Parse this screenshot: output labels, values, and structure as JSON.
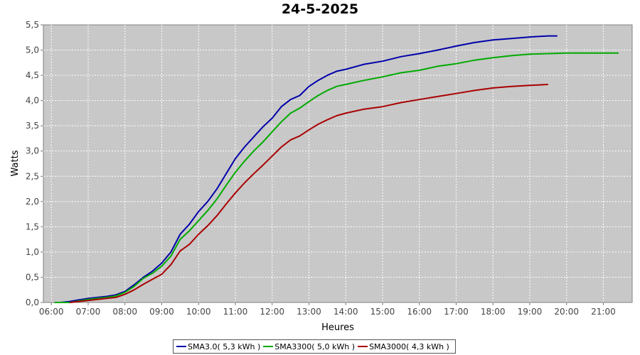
{
  "chart_data": {
    "type": "line",
    "title": "24-5-2025",
    "xlabel": "Heures",
    "ylabel": "Watts",
    "xlim": [
      "05:47",
      "21:47"
    ],
    "ylim": [
      0,
      5.5
    ],
    "x_ticks": [
      "06:00",
      "07:00",
      "08:00",
      "09:00",
      "10:00",
      "11:00",
      "12:00",
      "13:00",
      "14:00",
      "15:00",
      "16:00",
      "17:00",
      "18:00",
      "19:00",
      "20:00",
      "21:00"
    ],
    "y_ticks": [
      "0,0",
      "0,5",
      "1,0",
      "1,5",
      "2,0",
      "2,5",
      "3,0",
      "3,5",
      "4,0",
      "4,5",
      "5,0",
      "5,5"
    ],
    "grid": true,
    "legend_position": "bottom",
    "series": [
      {
        "name": "SMA3.0( 5,3 kWh )",
        "color": "#0000aa",
        "points": [
          [
            "06:15",
            0.0
          ],
          [
            "06:30",
            0.02
          ],
          [
            "06:45",
            0.05
          ],
          [
            "07:00",
            0.08
          ],
          [
            "07:15",
            0.1
          ],
          [
            "07:30",
            0.12
          ],
          [
            "07:45",
            0.15
          ],
          [
            "08:00",
            0.22
          ],
          [
            "08:15",
            0.35
          ],
          [
            "08:30",
            0.5
          ],
          [
            "08:45",
            0.62
          ],
          [
            "09:00",
            0.78
          ],
          [
            "09:15",
            1.0
          ],
          [
            "09:30",
            1.35
          ],
          [
            "09:45",
            1.55
          ],
          [
            "10:00",
            1.8
          ],
          [
            "10:15",
            2.0
          ],
          [
            "10:30",
            2.25
          ],
          [
            "10:45",
            2.55
          ],
          [
            "11:00",
            2.85
          ],
          [
            "11:15",
            3.08
          ],
          [
            "11:30",
            3.28
          ],
          [
            "11:45",
            3.48
          ],
          [
            "12:00",
            3.65
          ],
          [
            "12:15",
            3.88
          ],
          [
            "12:30",
            4.02
          ],
          [
            "12:45",
            4.1
          ],
          [
            "13:00",
            4.28
          ],
          [
            "13:15",
            4.4
          ],
          [
            "13:30",
            4.5
          ],
          [
            "13:45",
            4.58
          ],
          [
            "14:00",
            4.62
          ],
          [
            "14:30",
            4.72
          ],
          [
            "15:00",
            4.78
          ],
          [
            "15:30",
            4.87
          ],
          [
            "16:00",
            4.93
          ],
          [
            "16:30",
            5.0
          ],
          [
            "17:00",
            5.08
          ],
          [
            "17:30",
            5.15
          ],
          [
            "18:00",
            5.2
          ],
          [
            "18:30",
            5.23
          ],
          [
            "19:00",
            5.26
          ],
          [
            "19:30",
            5.28
          ],
          [
            "19:45",
            5.28
          ]
        ]
      },
      {
        "name": "SMA3300( 5,0 kWh )",
        "color": "#00aa00",
        "points": [
          [
            "06:05",
            0.0
          ],
          [
            "06:30",
            0.0
          ],
          [
            "06:45",
            0.03
          ],
          [
            "07:00",
            0.06
          ],
          [
            "07:15",
            0.08
          ],
          [
            "07:30",
            0.1
          ],
          [
            "07:45",
            0.13
          ],
          [
            "08:00",
            0.2
          ],
          [
            "08:15",
            0.32
          ],
          [
            "08:30",
            0.48
          ],
          [
            "08:45",
            0.58
          ],
          [
            "09:00",
            0.72
          ],
          [
            "09:15",
            0.92
          ],
          [
            "09:30",
            1.25
          ],
          [
            "09:45",
            1.42
          ],
          [
            "10:00",
            1.62
          ],
          [
            "10:15",
            1.82
          ],
          [
            "10:30",
            2.05
          ],
          [
            "10:45",
            2.32
          ],
          [
            "11:00",
            2.58
          ],
          [
            "11:15",
            2.8
          ],
          [
            "11:30",
            3.0
          ],
          [
            "11:45",
            3.18
          ],
          [
            "12:00",
            3.38
          ],
          [
            "12:15",
            3.58
          ],
          [
            "12:30",
            3.75
          ],
          [
            "12:45",
            3.85
          ],
          [
            "13:00",
            3.98
          ],
          [
            "13:15",
            4.1
          ],
          [
            "13:30",
            4.2
          ],
          [
            "13:45",
            4.28
          ],
          [
            "14:00",
            4.32
          ],
          [
            "14:30",
            4.4
          ],
          [
            "15:00",
            4.47
          ],
          [
            "15:30",
            4.55
          ],
          [
            "16:00",
            4.6
          ],
          [
            "16:30",
            4.68
          ],
          [
            "17:00",
            4.73
          ],
          [
            "17:30",
            4.8
          ],
          [
            "18:00",
            4.85
          ],
          [
            "18:30",
            4.89
          ],
          [
            "19:00",
            4.92
          ],
          [
            "19:30",
            4.93
          ],
          [
            "20:00",
            4.94
          ],
          [
            "21:00",
            4.94
          ],
          [
            "21:25",
            4.94
          ]
        ]
      },
      {
        "name": "SMA3000( 4,3 kWh )",
        "color": "#aa0000",
        "points": [
          [
            "06:30",
            0.0
          ],
          [
            "06:45",
            0.02
          ],
          [
            "07:00",
            0.04
          ],
          [
            "07:15",
            0.06
          ],
          [
            "07:30",
            0.08
          ],
          [
            "07:45",
            0.1
          ],
          [
            "08:00",
            0.16
          ],
          [
            "08:15",
            0.25
          ],
          [
            "08:30",
            0.36
          ],
          [
            "08:45",
            0.46
          ],
          [
            "09:00",
            0.56
          ],
          [
            "09:15",
            0.75
          ],
          [
            "09:30",
            1.02
          ],
          [
            "09:45",
            1.15
          ],
          [
            "10:00",
            1.35
          ],
          [
            "10:15",
            1.52
          ],
          [
            "10:30",
            1.72
          ],
          [
            "10:45",
            1.95
          ],
          [
            "11:00",
            2.17
          ],
          [
            "11:15",
            2.37
          ],
          [
            "11:30",
            2.55
          ],
          [
            "11:45",
            2.72
          ],
          [
            "12:00",
            2.9
          ],
          [
            "12:15",
            3.08
          ],
          [
            "12:30",
            3.22
          ],
          [
            "12:45",
            3.3
          ],
          [
            "13:00",
            3.42
          ],
          [
            "13:15",
            3.53
          ],
          [
            "13:30",
            3.62
          ],
          [
            "13:45",
            3.7
          ],
          [
            "14:00",
            3.75
          ],
          [
            "14:30",
            3.83
          ],
          [
            "15:00",
            3.88
          ],
          [
            "15:30",
            3.96
          ],
          [
            "16:00",
            4.02
          ],
          [
            "16:30",
            4.08
          ],
          [
            "17:00",
            4.14
          ],
          [
            "17:30",
            4.2
          ],
          [
            "18:00",
            4.25
          ],
          [
            "18:30",
            4.28
          ],
          [
            "19:00",
            4.3
          ],
          [
            "19:30",
            4.32
          ]
        ]
      }
    ]
  }
}
